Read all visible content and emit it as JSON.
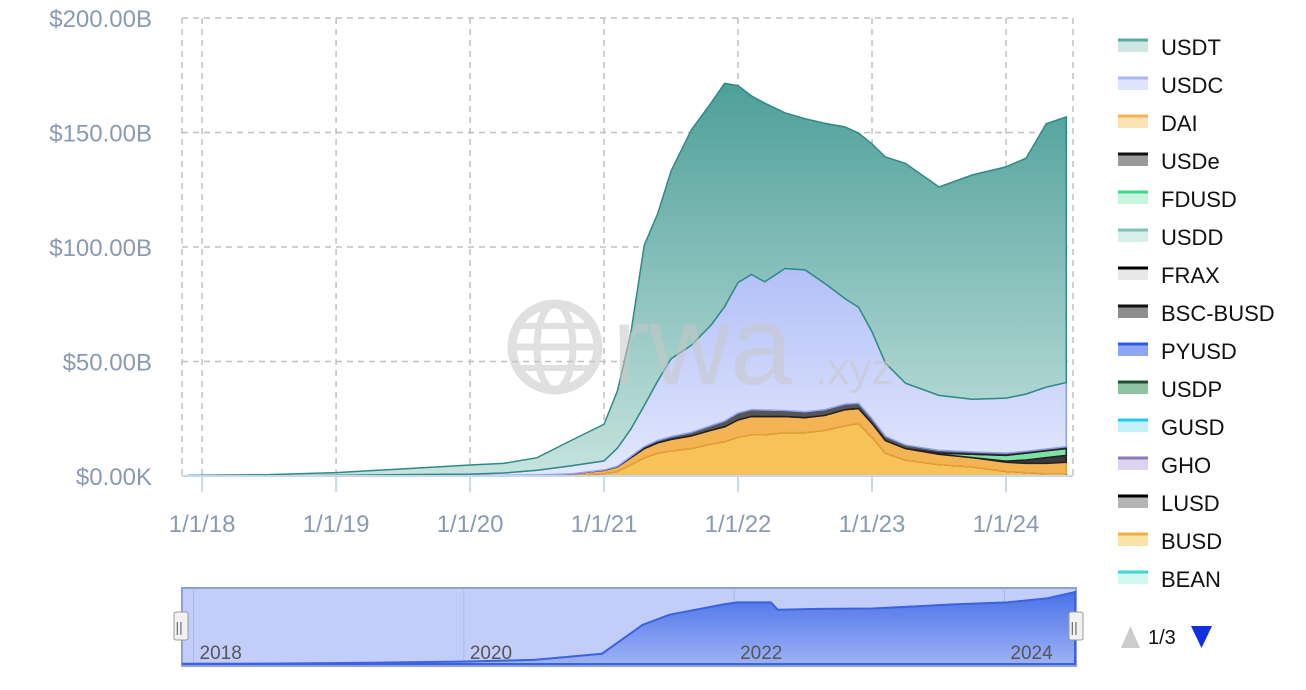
{
  "chart_data": {
    "type": "area",
    "stacked": true,
    "y_tick_labels": [
      "$200.00B",
      "$150.00B",
      "$100.00B",
      "$50.00B",
      "$0.00K"
    ],
    "y_tick_values": [
      200,
      150,
      100,
      50,
      0
    ],
    "y_unit": "billions USD",
    "ylim": [
      0,
      200
    ],
    "x_tick_labels": [
      "1/1/18",
      "1/1/19",
      "1/1/20",
      "1/1/21",
      "1/1/22",
      "1/1/23",
      "1/1/24"
    ],
    "x_tick_values": [
      2018.0,
      2019.0,
      2020.0,
      2021.0,
      2022.0,
      2023.0,
      2024.0
    ],
    "xlim": [
      2017.85,
      2024.5
    ],
    "grid": true,
    "legend_position": "right",
    "series_order_bottom_to_top": [
      "BUSD",
      "DAI",
      "USDe",
      "FDUSD",
      "FRAX",
      "USDC",
      "USDT"
    ],
    "x": [
      2017.9,
      2018.5,
      2019.0,
      2019.5,
      2020.0,
      2020.25,
      2020.5,
      2020.75,
      2021.0,
      2021.1,
      2021.2,
      2021.3,
      2021.4,
      2021.5,
      2021.65,
      2021.8,
      2021.9,
      2022.0,
      2022.1,
      2022.2,
      2022.35,
      2022.5,
      2022.65,
      2022.8,
      2022.9,
      2023.0,
      2023.1,
      2023.25,
      2023.5,
      2023.75,
      2024.0,
      2024.15,
      2024.3,
      2024.45
    ],
    "series": [
      {
        "name": "BUSD",
        "color": "#f7c257",
        "values": [
          0,
          0,
          0,
          0.1,
          0.2,
          0.2,
          0.3,
          0.5,
          1.0,
          2.0,
          5.0,
          8.0,
          10.0,
          11.0,
          12.0,
          14.0,
          15.0,
          17.0,
          18.0,
          18.0,
          19.0,
          19.0,
          20.0,
          22.0,
          23.0,
          17.0,
          10.0,
          7.0,
          5.0,
          4.0,
          2.0,
          1.5,
          1.0,
          1.0
        ]
      },
      {
        "name": "DAI",
        "color": "#f5b454",
        "values": [
          0,
          0,
          0.1,
          0.1,
          0.1,
          0.1,
          0.2,
          0.4,
          1.5,
          2.0,
          3.0,
          4.0,
          4.5,
          5.0,
          5.5,
          6.0,
          6.5,
          7.5,
          8.0,
          8.0,
          7.0,
          6.5,
          6.5,
          7.0,
          6.5,
          6.0,
          5.5,
          5.0,
          4.5,
          4.0,
          4.0,
          4.0,
          4.5,
          5.0
        ]
      },
      {
        "name": "USDe",
        "color": "#3a3a3a",
        "values": [
          0,
          0,
          0,
          0,
          0,
          0,
          0,
          0,
          0,
          0,
          0,
          0,
          0,
          0,
          0,
          0,
          0,
          0,
          0,
          0,
          0,
          0,
          0,
          0,
          0,
          0,
          0,
          0,
          0,
          0,
          0.5,
          1.5,
          2.5,
          3.0
        ]
      },
      {
        "name": "FDUSD",
        "color": "#7de0a4",
        "values": [
          0,
          0,
          0,
          0,
          0,
          0,
          0,
          0,
          0,
          0,
          0,
          0,
          0,
          0,
          0,
          0,
          0,
          0,
          0,
          0,
          0,
          0,
          0,
          0,
          0,
          0,
          0,
          0,
          0.5,
          1.5,
          2.5,
          3.0,
          3.0,
          3.0
        ]
      },
      {
        "name": "FRAX",
        "color": "#555555",
        "values": [
          0,
          0,
          0,
          0,
          0,
          0,
          0,
          0,
          0.1,
          0.2,
          0.5,
          0.8,
          1.0,
          1.2,
          1.5,
          2.0,
          2.5,
          3.0,
          3.0,
          2.8,
          2.6,
          2.5,
          2.5,
          2.4,
          2.2,
          2.0,
          1.8,
          1.5,
          1.2,
          1.0,
          1.0,
          0.8,
          0.8,
          0.8
        ]
      },
      {
        "name": "USDC",
        "color": "#c3cdfa",
        "values": [
          0,
          0,
          0.2,
          0.4,
          0.5,
          1.0,
          2.0,
          3.5,
          4.0,
          8.0,
          12.0,
          18.0,
          26.0,
          34.0,
          38.0,
          44.0,
          50.0,
          57.0,
          59.0,
          56.0,
          62.0,
          62.0,
          55.0,
          46.0,
          42.0,
          38.0,
          32.0,
          27.0,
          24.0,
          23.0,
          24.0,
          25.0,
          27.0,
          28.0
        ]
      },
      {
        "name": "USDT",
        "color": "#5aa8a3",
        "values": [
          0.3,
          0.6,
          1.2,
          2.5,
          4.0,
          4.2,
          5.5,
          11.0,
          16.0,
          25.0,
          42.0,
          70.0,
          73.0,
          82.0,
          94.0,
          97.0,
          97.5,
          86.0,
          78.0,
          78.0,
          68.0,
          66.0,
          70.0,
          75.0,
          76.0,
          82.0,
          90.0,
          96.0,
          91.0,
          98.0,
          101.0,
          103.0,
          115.0,
          116.0
        ]
      }
    ]
  },
  "legend": {
    "items": [
      {
        "label": "USDT",
        "color": "#5aa8a3",
        "color2": "#cfe6e3"
      },
      {
        "label": "USDC",
        "color": "#aab7f5",
        "color2": "#dfe4fd"
      },
      {
        "label": "DAI",
        "color": "#f5b454",
        "color2": "#fbe2b4"
      },
      {
        "label": "USDe",
        "color": "#111111",
        "color2": "#9a9a9a"
      },
      {
        "label": "FDUSD",
        "color": "#3ed68a",
        "color2": "#c8f5de"
      },
      {
        "label": "USDD",
        "color": "#7fc4b4",
        "color2": "#d8eee8"
      },
      {
        "label": "FRAX",
        "color": "#000000",
        "color2": "#e8e8e8"
      },
      {
        "label": "BSC-BUSD",
        "color": "#111111",
        "color2": "#8d8d8d"
      },
      {
        "label": "PYUSD",
        "color": "#2d5be3",
        "color2": "#8ea7f4"
      },
      {
        "label": "USDP",
        "color": "#1f4d31",
        "color2": "#8fc4a3"
      },
      {
        "label": "GUSD",
        "color": "#27c8ee",
        "color2": "#c2f1fc"
      },
      {
        "label": "GHO",
        "color": "#8c7bb4",
        "color2": "#dcd4ee"
      },
      {
        "label": "LUSD",
        "color": "#000000",
        "color2": "#b5b5b5"
      },
      {
        "label": "BUSD",
        "color": "#f0b040",
        "color2": "#fbe3a8"
      },
      {
        "label": "BEAN",
        "color": "#3ad9c8",
        "color2": "#d2f8f2"
      }
    ],
    "page": "1/3"
  },
  "navigator": {
    "labels": [
      "2018",
      "2020",
      "2022",
      "2024"
    ],
    "label_years": [
      2018,
      2020,
      2022,
      2024
    ],
    "handle_glyph": "||",
    "series_years": [
      2017.9,
      2018.5,
      2019.0,
      2019.5,
      2020.0,
      2020.5,
      2021.0,
      2021.3,
      2021.5,
      2021.9,
      2022.0,
      2022.25,
      2022.3,
      2022.6,
      2023.0,
      2023.3,
      2023.6,
      2024.0,
      2024.3,
      2024.5
    ],
    "series_values": [
      0.5,
      1,
      2,
      4,
      6,
      10,
      25,
      95,
      120,
      145,
      150,
      150,
      132,
      134,
      135,
      140,
      145,
      150,
      160,
      175
    ]
  },
  "watermark": {
    "text": "rwa",
    "suffix": ".xyz"
  }
}
